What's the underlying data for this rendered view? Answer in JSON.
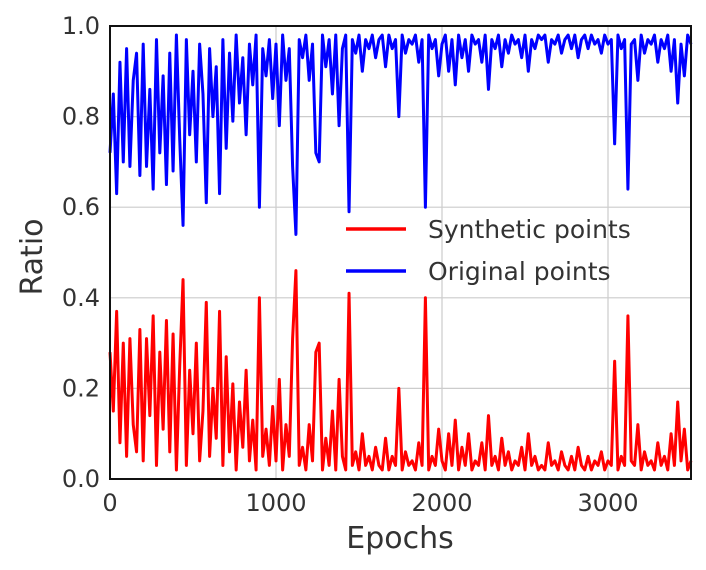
{
  "chart_data": {
    "type": "line",
    "xlabel": "Epochs",
    "ylabel": "Ratio",
    "xlim": [
      0,
      3500
    ],
    "ylim": [
      0,
      1
    ],
    "x_ticks": [
      0,
      1000,
      2000,
      3000
    ],
    "y_ticks": [
      0.0,
      0.2,
      0.4,
      0.6,
      0.8,
      1.0
    ],
    "x_tick_labels": [
      "0",
      "1000",
      "2000",
      "3000"
    ],
    "y_tick_labels": [
      "0.0",
      "0.2",
      "0.4",
      "0.6",
      "0.8",
      "1.0"
    ],
    "grid": true,
    "legend_position": "center-right",
    "series": [
      {
        "name": "Synthetic points",
        "color": "#ff0000",
        "x": [
          0,
          20,
          40,
          60,
          80,
          100,
          120,
          140,
          160,
          180,
          200,
          220,
          240,
          260,
          280,
          300,
          320,
          340,
          360,
          380,
          400,
          420,
          440,
          460,
          480,
          500,
          520,
          540,
          560,
          580,
          600,
          620,
          640,
          660,
          680,
          700,
          720,
          740,
          760,
          780,
          800,
          820,
          840,
          860,
          880,
          900,
          920,
          940,
          960,
          980,
          1000,
          1020,
          1040,
          1060,
          1080,
          1100,
          1120,
          1140,
          1160,
          1180,
          1200,
          1220,
          1240,
          1260,
          1280,
          1300,
          1320,
          1340,
          1360,
          1380,
          1400,
          1420,
          1440,
          1460,
          1480,
          1500,
          1520,
          1540,
          1560,
          1580,
          1600,
          1620,
          1640,
          1660,
          1680,
          1700,
          1720,
          1740,
          1760,
          1780,
          1800,
          1820,
          1840,
          1860,
          1880,
          1900,
          1920,
          1940,
          1960,
          1980,
          2000,
          2020,
          2040,
          2060,
          2080,
          2100,
          2120,
          2140,
          2160,
          2180,
          2200,
          2220,
          2240,
          2260,
          2280,
          2300,
          2320,
          2340,
          2360,
          2380,
          2400,
          2420,
          2440,
          2460,
          2480,
          2500,
          2520,
          2540,
          2560,
          2580,
          2600,
          2620,
          2640,
          2660,
          2680,
          2700,
          2720,
          2740,
          2760,
          2780,
          2800,
          2820,
          2840,
          2860,
          2880,
          2900,
          2920,
          2940,
          2960,
          2980,
          3000,
          3020,
          3040,
          3060,
          3080,
          3100,
          3120,
          3140,
          3160,
          3180,
          3200,
          3220,
          3240,
          3260,
          3280,
          3300,
          3320,
          3340,
          3360,
          3380,
          3400,
          3420,
          3440,
          3460,
          3480,
          3500
        ],
        "values": [
          0.28,
          0.15,
          0.37,
          0.08,
          0.3,
          0.05,
          0.31,
          0.12,
          0.06,
          0.33,
          0.04,
          0.31,
          0.14,
          0.36,
          0.03,
          0.28,
          0.11,
          0.35,
          0.06,
          0.32,
          0.02,
          0.25,
          0.44,
          0.03,
          0.24,
          0.1,
          0.3,
          0.04,
          0.15,
          0.39,
          0.05,
          0.2,
          0.09,
          0.37,
          0.03,
          0.27,
          0.06,
          0.21,
          0.02,
          0.17,
          0.07,
          0.24,
          0.04,
          0.13,
          0.02,
          0.4,
          0.05,
          0.11,
          0.03,
          0.16,
          0.04,
          0.22,
          0.02,
          0.12,
          0.05,
          0.31,
          0.46,
          0.03,
          0.07,
          0.02,
          0.12,
          0.04,
          0.28,
          0.3,
          0.02,
          0.09,
          0.03,
          0.15,
          0.02,
          0.22,
          0.05,
          0.02,
          0.41,
          0.03,
          0.06,
          0.02,
          0.1,
          0.03,
          0.05,
          0.02,
          0.07,
          0.03,
          0.02,
          0.09,
          0.02,
          0.05,
          0.03,
          0.2,
          0.02,
          0.06,
          0.03,
          0.04,
          0.02,
          0.08,
          0.03,
          0.4,
          0.02,
          0.05,
          0.03,
          0.11,
          0.04,
          0.02,
          0.1,
          0.03,
          0.13,
          0.02,
          0.07,
          0.03,
          0.1,
          0.02,
          0.04,
          0.03,
          0.08,
          0.02,
          0.14,
          0.03,
          0.05,
          0.02,
          0.09,
          0.03,
          0.06,
          0.02,
          0.04,
          0.03,
          0.07,
          0.02,
          0.1,
          0.03,
          0.05,
          0.02,
          0.03,
          0.02,
          0.08,
          0.03,
          0.04,
          0.02,
          0.06,
          0.03,
          0.02,
          0.05,
          0.02,
          0.07,
          0.03,
          0.02,
          0.05,
          0.02,
          0.04,
          0.03,
          0.06,
          0.02,
          0.04,
          0.03,
          0.26,
          0.02,
          0.05,
          0.03,
          0.36,
          0.04,
          0.03,
          0.12,
          0.02,
          0.06,
          0.03,
          0.04,
          0.02,
          0.08,
          0.03,
          0.05,
          0.02,
          0.1,
          0.03,
          0.17,
          0.04,
          0.11,
          0.02,
          0.04
        ]
      },
      {
        "name": "Original points",
        "color": "#0000ff",
        "x": [
          0,
          20,
          40,
          60,
          80,
          100,
          120,
          140,
          160,
          180,
          200,
          220,
          240,
          260,
          280,
          300,
          320,
          340,
          360,
          380,
          400,
          420,
          440,
          460,
          480,
          500,
          520,
          540,
          560,
          580,
          600,
          620,
          640,
          660,
          680,
          700,
          720,
          740,
          760,
          780,
          800,
          820,
          840,
          860,
          880,
          900,
          920,
          940,
          960,
          980,
          1000,
          1020,
          1040,
          1060,
          1080,
          1100,
          1120,
          1140,
          1160,
          1180,
          1200,
          1220,
          1240,
          1260,
          1280,
          1300,
          1320,
          1340,
          1360,
          1380,
          1400,
          1420,
          1440,
          1460,
          1480,
          1500,
          1520,
          1540,
          1560,
          1580,
          1600,
          1620,
          1640,
          1660,
          1680,
          1700,
          1720,
          1740,
          1760,
          1780,
          1800,
          1820,
          1840,
          1860,
          1880,
          1900,
          1920,
          1940,
          1960,
          1980,
          2000,
          2020,
          2040,
          2060,
          2080,
          2100,
          2120,
          2140,
          2160,
          2180,
          2200,
          2220,
          2240,
          2260,
          2280,
          2300,
          2320,
          2340,
          2360,
          2380,
          2400,
          2420,
          2440,
          2460,
          2480,
          2500,
          2520,
          2540,
          2560,
          2580,
          2600,
          2620,
          2640,
          2660,
          2680,
          2700,
          2720,
          2740,
          2760,
          2780,
          2800,
          2820,
          2840,
          2860,
          2880,
          2900,
          2920,
          2940,
          2960,
          2980,
          3000,
          3020,
          3040,
          3060,
          3080,
          3100,
          3120,
          3140,
          3160,
          3180,
          3200,
          3220,
          3240,
          3260,
          3280,
          3300,
          3320,
          3340,
          3360,
          3380,
          3400,
          3420,
          3440,
          3460,
          3480,
          3500
        ],
        "values": [
          0.72,
          0.85,
          0.63,
          0.92,
          0.7,
          0.95,
          0.69,
          0.88,
          0.94,
          0.67,
          0.96,
          0.69,
          0.86,
          0.64,
          0.97,
          0.72,
          0.89,
          0.65,
          0.94,
          0.68,
          0.98,
          0.75,
          0.56,
          0.97,
          0.76,
          0.9,
          0.7,
          0.96,
          0.85,
          0.61,
          0.95,
          0.8,
          0.91,
          0.63,
          0.97,
          0.73,
          0.94,
          0.79,
          0.98,
          0.83,
          0.93,
          0.76,
          0.96,
          0.87,
          0.98,
          0.6,
          0.95,
          0.89,
          0.97,
          0.84,
          0.96,
          0.78,
          0.98,
          0.88,
          0.95,
          0.69,
          0.54,
          0.97,
          0.93,
          0.98,
          0.88,
          0.96,
          0.72,
          0.7,
          0.98,
          0.91,
          0.97,
          0.85,
          0.98,
          0.78,
          0.95,
          0.98,
          0.59,
          0.97,
          0.94,
          0.98,
          0.9,
          0.97,
          0.95,
          0.98,
          0.93,
          0.97,
          0.98,
          0.91,
          0.98,
          0.95,
          0.97,
          0.8,
          0.98,
          0.94,
          0.97,
          0.96,
          0.98,
          0.92,
          0.97,
          0.6,
          0.98,
          0.95,
          0.97,
          0.89,
          0.96,
          0.98,
          0.9,
          0.97,
          0.87,
          0.98,
          0.93,
          0.97,
          0.9,
          0.98,
          0.96,
          0.97,
          0.92,
          0.98,
          0.86,
          0.97,
          0.95,
          0.98,
          0.91,
          0.97,
          0.94,
          0.98,
          0.96,
          0.97,
          0.93,
          0.98,
          0.9,
          0.97,
          0.95,
          0.98,
          0.97,
          0.98,
          0.92,
          0.97,
          0.96,
          0.98,
          0.94,
          0.97,
          0.98,
          0.95,
          0.98,
          0.93,
          0.97,
          0.98,
          0.95,
          0.98,
          0.96,
          0.97,
          0.94,
          0.98,
          0.96,
          0.97,
          0.74,
          0.98,
          0.95,
          0.97,
          0.64,
          0.96,
          0.97,
          0.88,
          0.98,
          0.94,
          0.97,
          0.96,
          0.98,
          0.92,
          0.97,
          0.95,
          0.98,
          0.9,
          0.97,
          0.83,
          0.96,
          0.89,
          0.98,
          0.96
        ]
      }
    ]
  }
}
